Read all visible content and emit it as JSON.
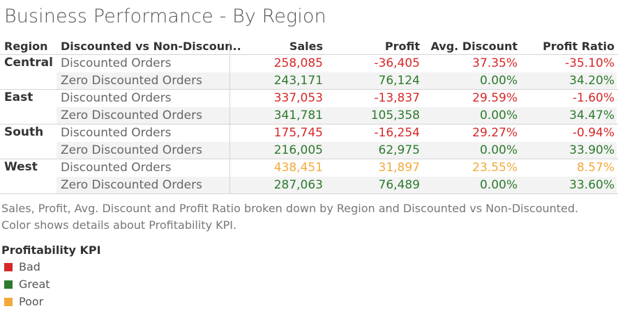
{
  "title": "Business Performance - By Region",
  "colors": {
    "Bad": "#d62728",
    "Great": "#2d7a2d",
    "Poor": "#f2a93b"
  },
  "chart_data": {
    "type": "table",
    "columns": [
      "Region",
      "Discounted vs Non-Discoun..",
      "Sales",
      "Profit",
      "Avg. Discount",
      "Profit Ratio"
    ],
    "groups": [
      {
        "region": "Central",
        "rows": [
          {
            "label": "Discounted Orders",
            "kpi": "Bad",
            "sales": "258,085",
            "profit": "-36,405",
            "avg_discount": "37.35%",
            "profit_ratio": "-35.10%"
          },
          {
            "label": "Zero Discounted Orders",
            "kpi": "Great",
            "sales": "243,171",
            "profit": "76,124",
            "avg_discount": "0.00%",
            "profit_ratio": "34.20%"
          }
        ]
      },
      {
        "region": "East",
        "rows": [
          {
            "label": "Discounted Orders",
            "kpi": "Bad",
            "sales": "337,053",
            "profit": "-13,837",
            "avg_discount": "29.59%",
            "profit_ratio": "-1.60%"
          },
          {
            "label": "Zero Discounted Orders",
            "kpi": "Great",
            "sales": "341,781",
            "profit": "105,358",
            "avg_discount": "0.00%",
            "profit_ratio": "34.47%"
          }
        ]
      },
      {
        "region": "South",
        "rows": [
          {
            "label": "Discounted Orders",
            "kpi": "Bad",
            "sales": "175,745",
            "profit": "-16,254",
            "avg_discount": "29.27%",
            "profit_ratio": "-0.94%"
          },
          {
            "label": "Zero Discounted Orders",
            "kpi": "Great",
            "sales": "216,005",
            "profit": "62,975",
            "avg_discount": "0.00%",
            "profit_ratio": "33.90%"
          }
        ]
      },
      {
        "region": "West",
        "rows": [
          {
            "label": "Discounted Orders",
            "kpi": "Poor",
            "sales": "438,451",
            "profit": "31,897",
            "avg_discount": "23.55%",
            "profit_ratio": "8.57%"
          },
          {
            "label": "Zero Discounted Orders",
            "kpi": "Great",
            "sales": "287,063",
            "profit": "76,489",
            "avg_discount": "0.00%",
            "profit_ratio": "33.60%"
          }
        ]
      }
    ]
  },
  "caption_line1": "Sales, Profit, Avg. Discount and Profit Ratio broken down by Region and Discounted vs Non-Discounted.",
  "caption_line2": "Color shows details about Profitability KPI.",
  "legend": {
    "title": "Profitability KPI",
    "items": [
      {
        "label": "Bad",
        "kpi": "Bad"
      },
      {
        "label": "Great",
        "kpi": "Great"
      },
      {
        "label": "Poor",
        "kpi": "Poor"
      }
    ]
  }
}
